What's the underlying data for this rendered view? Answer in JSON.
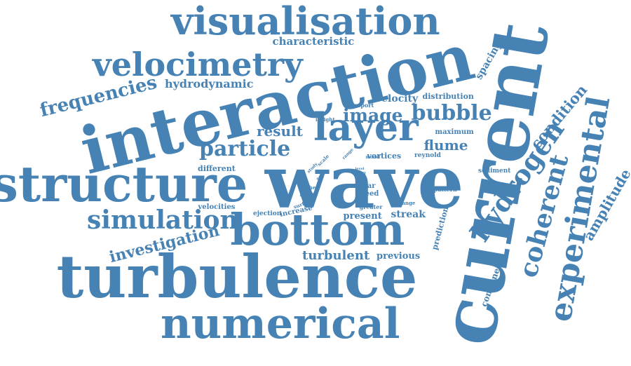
{
  "color": "#4682b4",
  "words": [
    {
      "text": "wave"
    },
    {
      "text": "current"
    },
    {
      "text": "interaction"
    },
    {
      "text": "turbulence"
    },
    {
      "text": "structure"
    },
    {
      "text": "bottom"
    },
    {
      "text": "numerical"
    },
    {
      "text": "visualisation"
    },
    {
      "text": "layer"
    },
    {
      "text": "velocimetry"
    },
    {
      "text": "experimental"
    },
    {
      "text": "hydrogen"
    },
    {
      "text": "coherent"
    },
    {
      "text": "simulation"
    },
    {
      "text": "particle"
    },
    {
      "text": "bubble"
    },
    {
      "text": "image"
    },
    {
      "text": "frequencies"
    },
    {
      "text": "investigation"
    },
    {
      "text": "condition"
    },
    {
      "text": "amplitude"
    },
    {
      "text": "flume"
    },
    {
      "text": "result"
    },
    {
      "text": "turbulent"
    },
    {
      "text": "hydrodynamic"
    },
    {
      "text": "characteristic"
    },
    {
      "text": "spacing"
    },
    {
      "text": "velocity"
    },
    {
      "text": "streak"
    },
    {
      "text": "present"
    },
    {
      "text": "previous"
    },
    {
      "text": "combined"
    },
    {
      "text": "prediction"
    },
    {
      "text": "distribution"
    },
    {
      "text": "different"
    },
    {
      "text": "maximum"
    },
    {
      "text": "vortices"
    },
    {
      "text": "reynold"
    },
    {
      "text": "sediment"
    },
    {
      "text": "velocities"
    },
    {
      "text": "ejection"
    },
    {
      "text": "increase"
    },
    {
      "text": "speed"
    },
    {
      "text": "shear"
    },
    {
      "text": "greater"
    },
    {
      "text": "pattern"
    },
    {
      "text": "change"
    },
    {
      "text": "surface"
    },
    {
      "text": "transport"
    },
    {
      "text": "insight"
    },
    {
      "text": "model"
    },
    {
      "text": "higher"
    },
    {
      "text": "length"
    },
    {
      "text": "wall"
    },
    {
      "text": "test"
    },
    {
      "text": "scale"
    },
    {
      "text": "study"
    },
    {
      "text": "range"
    },
    {
      "text": "level"
    },
    {
      "text": "flow"
    },
    {
      "text": "form"
    }
  ]
}
